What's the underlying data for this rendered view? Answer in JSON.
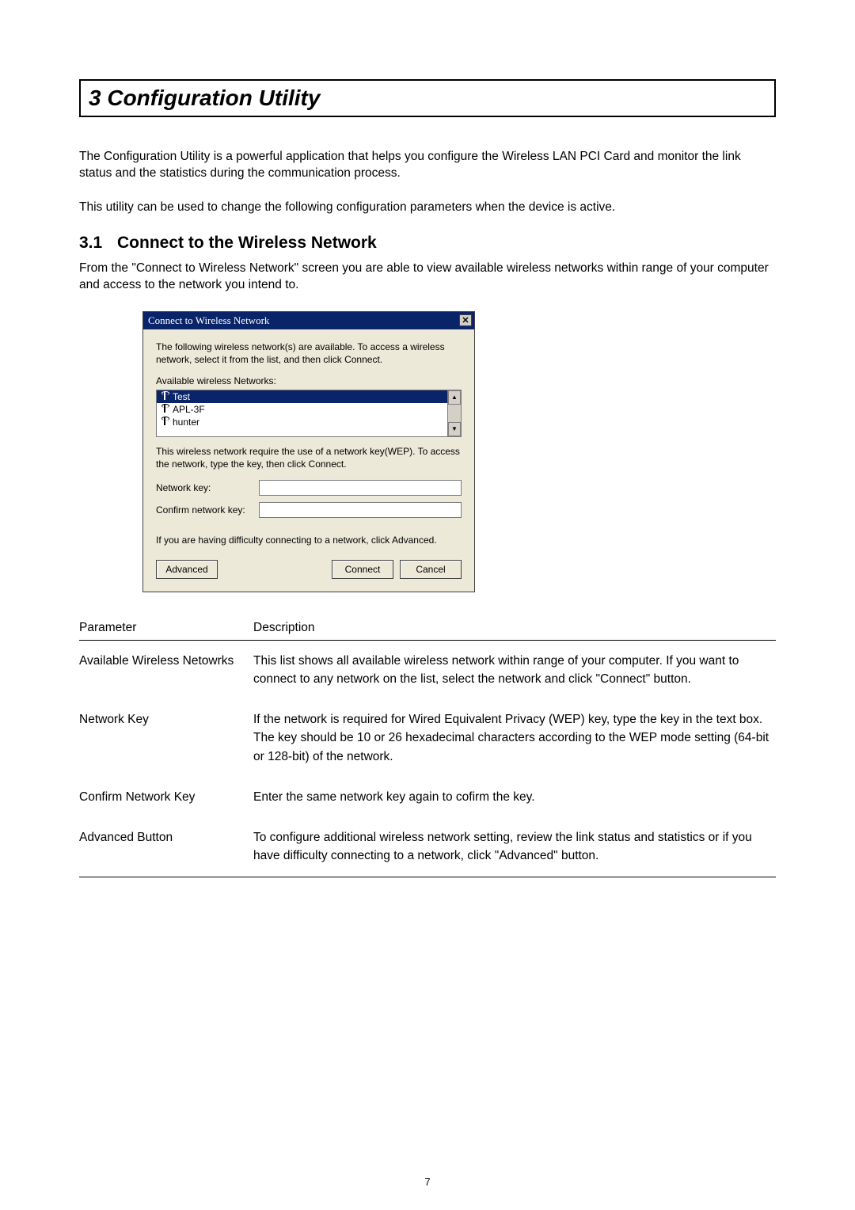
{
  "heading": "3  Configuration Utility",
  "para1": "The Configuration Utility is a powerful application that helps you configure the Wireless LAN PCI Card and monitor the link status and the statistics during the communication process.",
  "para2": "This utility can be used to change the following configuration parameters when the device is active.",
  "subheading_num": "3.1",
  "subheading_text": "Connect to the Wireless Network",
  "para3": "From the \"Connect to Wireless Network\" screen you are able to view available wireless networks within range of your computer and access to the network you intend to.",
  "dialog": {
    "title": "Connect to Wireless Network",
    "intro": "The following wireless network(s) are available. To access a wireless network, select it from the list, and then click Connect.",
    "list_label": "Available wireless Networks:",
    "items": [
      "Test",
      "APL-3F",
      "hunter"
    ],
    "selected_index": 0,
    "wep_text": "This wireless network require the use of a network key(WEP). To access the network, type the key, then click Connect.",
    "netkey_label": "Network key:",
    "confirm_label": "Confirm network key:",
    "netkey_value": "",
    "confirm_value": "",
    "diff_text": "If you are having difficulty connecting to a network, click Advanced.",
    "btn_advanced": "Advanced",
    "btn_connect": "Connect",
    "btn_cancel": "Cancel"
  },
  "table": {
    "head_param": "Parameter",
    "head_desc": "Description",
    "rows": [
      {
        "param": "Available Wireless Netowrks",
        "desc": "This list shows all available wireless network within range of your computer. If you want to connect to any network on the list, select the network and click \"Connect\" button."
      },
      {
        "param": "Network Key",
        "desc": "If the network is required for Wired Equivalent Privacy (WEP) key, type the key in the text box. The key should be 10 or 26 hexadecimal characters according to the WEP mode setting (64-bit or 128-bit) of the network."
      },
      {
        "param": "Confirm Network Key",
        "desc": "Enter the same network key again to cofirm the key."
      },
      {
        "param": "Advanced Button",
        "desc": "To configure additional wireless network setting, review the link status and statistics or if you have difficulty connecting to a network, click \"Advanced\" button."
      }
    ]
  },
  "page_number": "7"
}
